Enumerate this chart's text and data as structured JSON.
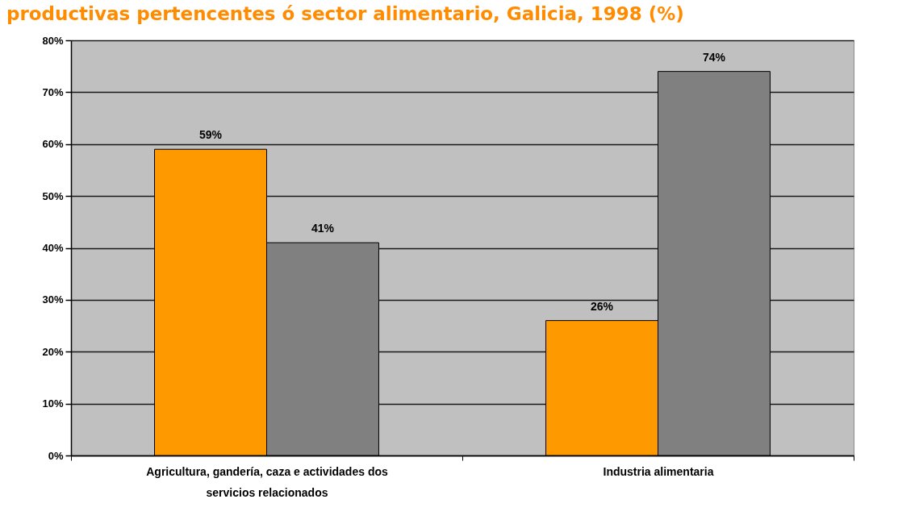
{
  "chart_data": {
    "type": "bar",
    "title": "productivas pertencentes ó sector alimentario, Galicia, 1998 (%)",
    "categories": [
      "Agricultura, gandería, caza e actividades dos servicios relacionados",
      "Industria alimentaria"
    ],
    "series": [
      {
        "color": "#ff9900",
        "values": [
          59,
          26
        ],
        "value_labels": [
          "59%",
          "26%"
        ]
      },
      {
        "color": "#808080",
        "values": [
          41,
          74
        ],
        "value_labels": [
          "41%",
          "74%"
        ]
      }
    ],
    "ylim": [
      0,
      80
    ],
    "yticks": [
      {
        "value": 0,
        "label": "0%"
      },
      {
        "value": 10,
        "label": "10%"
      },
      {
        "value": 20,
        "label": "20%"
      },
      {
        "value": 30,
        "label": "30%"
      },
      {
        "value": 40,
        "label": "40%"
      },
      {
        "value": 50,
        "label": "50%"
      },
      {
        "value": 60,
        "label": "60%"
      },
      {
        "value": 70,
        "label": "70%"
      },
      {
        "value": 80,
        "label": "80%"
      }
    ],
    "grid": "y"
  }
}
